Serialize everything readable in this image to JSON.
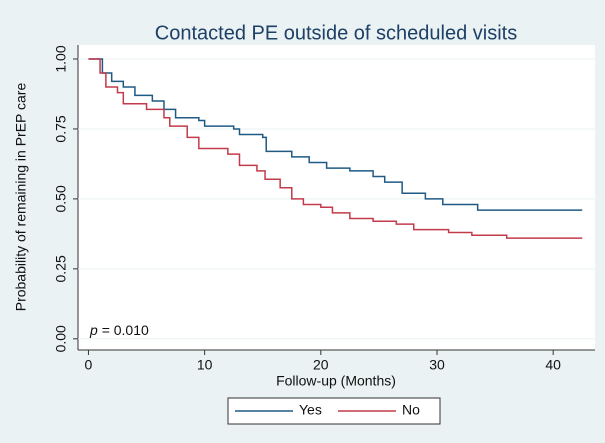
{
  "chart_data": {
    "type": "step",
    "title": "Contacted PE outside of scheduled visits",
    "x_label": "Follow-up (Months)",
    "y_label": "Probability of remaining in PrEP care",
    "annotation": {
      "italic": "p",
      "text": "= 0.010"
    },
    "xlim": [
      -0.9,
      43.6
    ],
    "ylim": [
      -0.04,
      1.05
    ],
    "xticks": [
      0,
      10,
      20,
      30,
      40
    ],
    "yticks": [
      {
        "value": 0,
        "label": "0.00"
      },
      {
        "value": 0.25,
        "label": "0.25"
      },
      {
        "value": 0.5,
        "label": "0.50"
      },
      {
        "value": 0.75,
        "label": "0.75"
      },
      {
        "value": 1,
        "label": "1.00"
      }
    ],
    "grid": true,
    "series": [
      {
        "name": "Yes",
        "color": "#1f5a85",
        "x": [
          0,
          1.2,
          2,
          3,
          4,
          5.5,
          6.5,
          7.5,
          9.5,
          10,
          12.5,
          13,
          15,
          15.3,
          17.5,
          19,
          20.5,
          22.5,
          24.5,
          25.5,
          27,
          29,
          30.5,
          33.5,
          42.5
        ],
        "values": [
          1,
          0.95,
          0.92,
          0.9,
          0.87,
          0.85,
          0.82,
          0.79,
          0.78,
          0.76,
          0.75,
          0.73,
          0.72,
          0.67,
          0.65,
          0.63,
          0.61,
          0.6,
          0.58,
          0.56,
          0.52,
          0.5,
          0.48,
          0.46,
          0.46
        ]
      },
      {
        "name": "No",
        "color": "#c23b4a",
        "x": [
          0,
          1,
          1.5,
          2.5,
          3,
          5,
          6.5,
          7,
          8.5,
          9.5,
          12,
          13,
          14.5,
          15.2,
          16.5,
          17.5,
          18.5,
          20,
          21,
          22.5,
          24.5,
          26.5,
          28,
          31,
          33,
          36,
          42.5
        ],
        "values": [
          1,
          0.95,
          0.9,
          0.88,
          0.84,
          0.82,
          0.79,
          0.76,
          0.72,
          0.68,
          0.66,
          0.62,
          0.6,
          0.57,
          0.54,
          0.5,
          0.48,
          0.47,
          0.45,
          0.43,
          0.42,
          0.41,
          0.39,
          0.38,
          0.37,
          0.36,
          0.36
        ]
      }
    ]
  }
}
